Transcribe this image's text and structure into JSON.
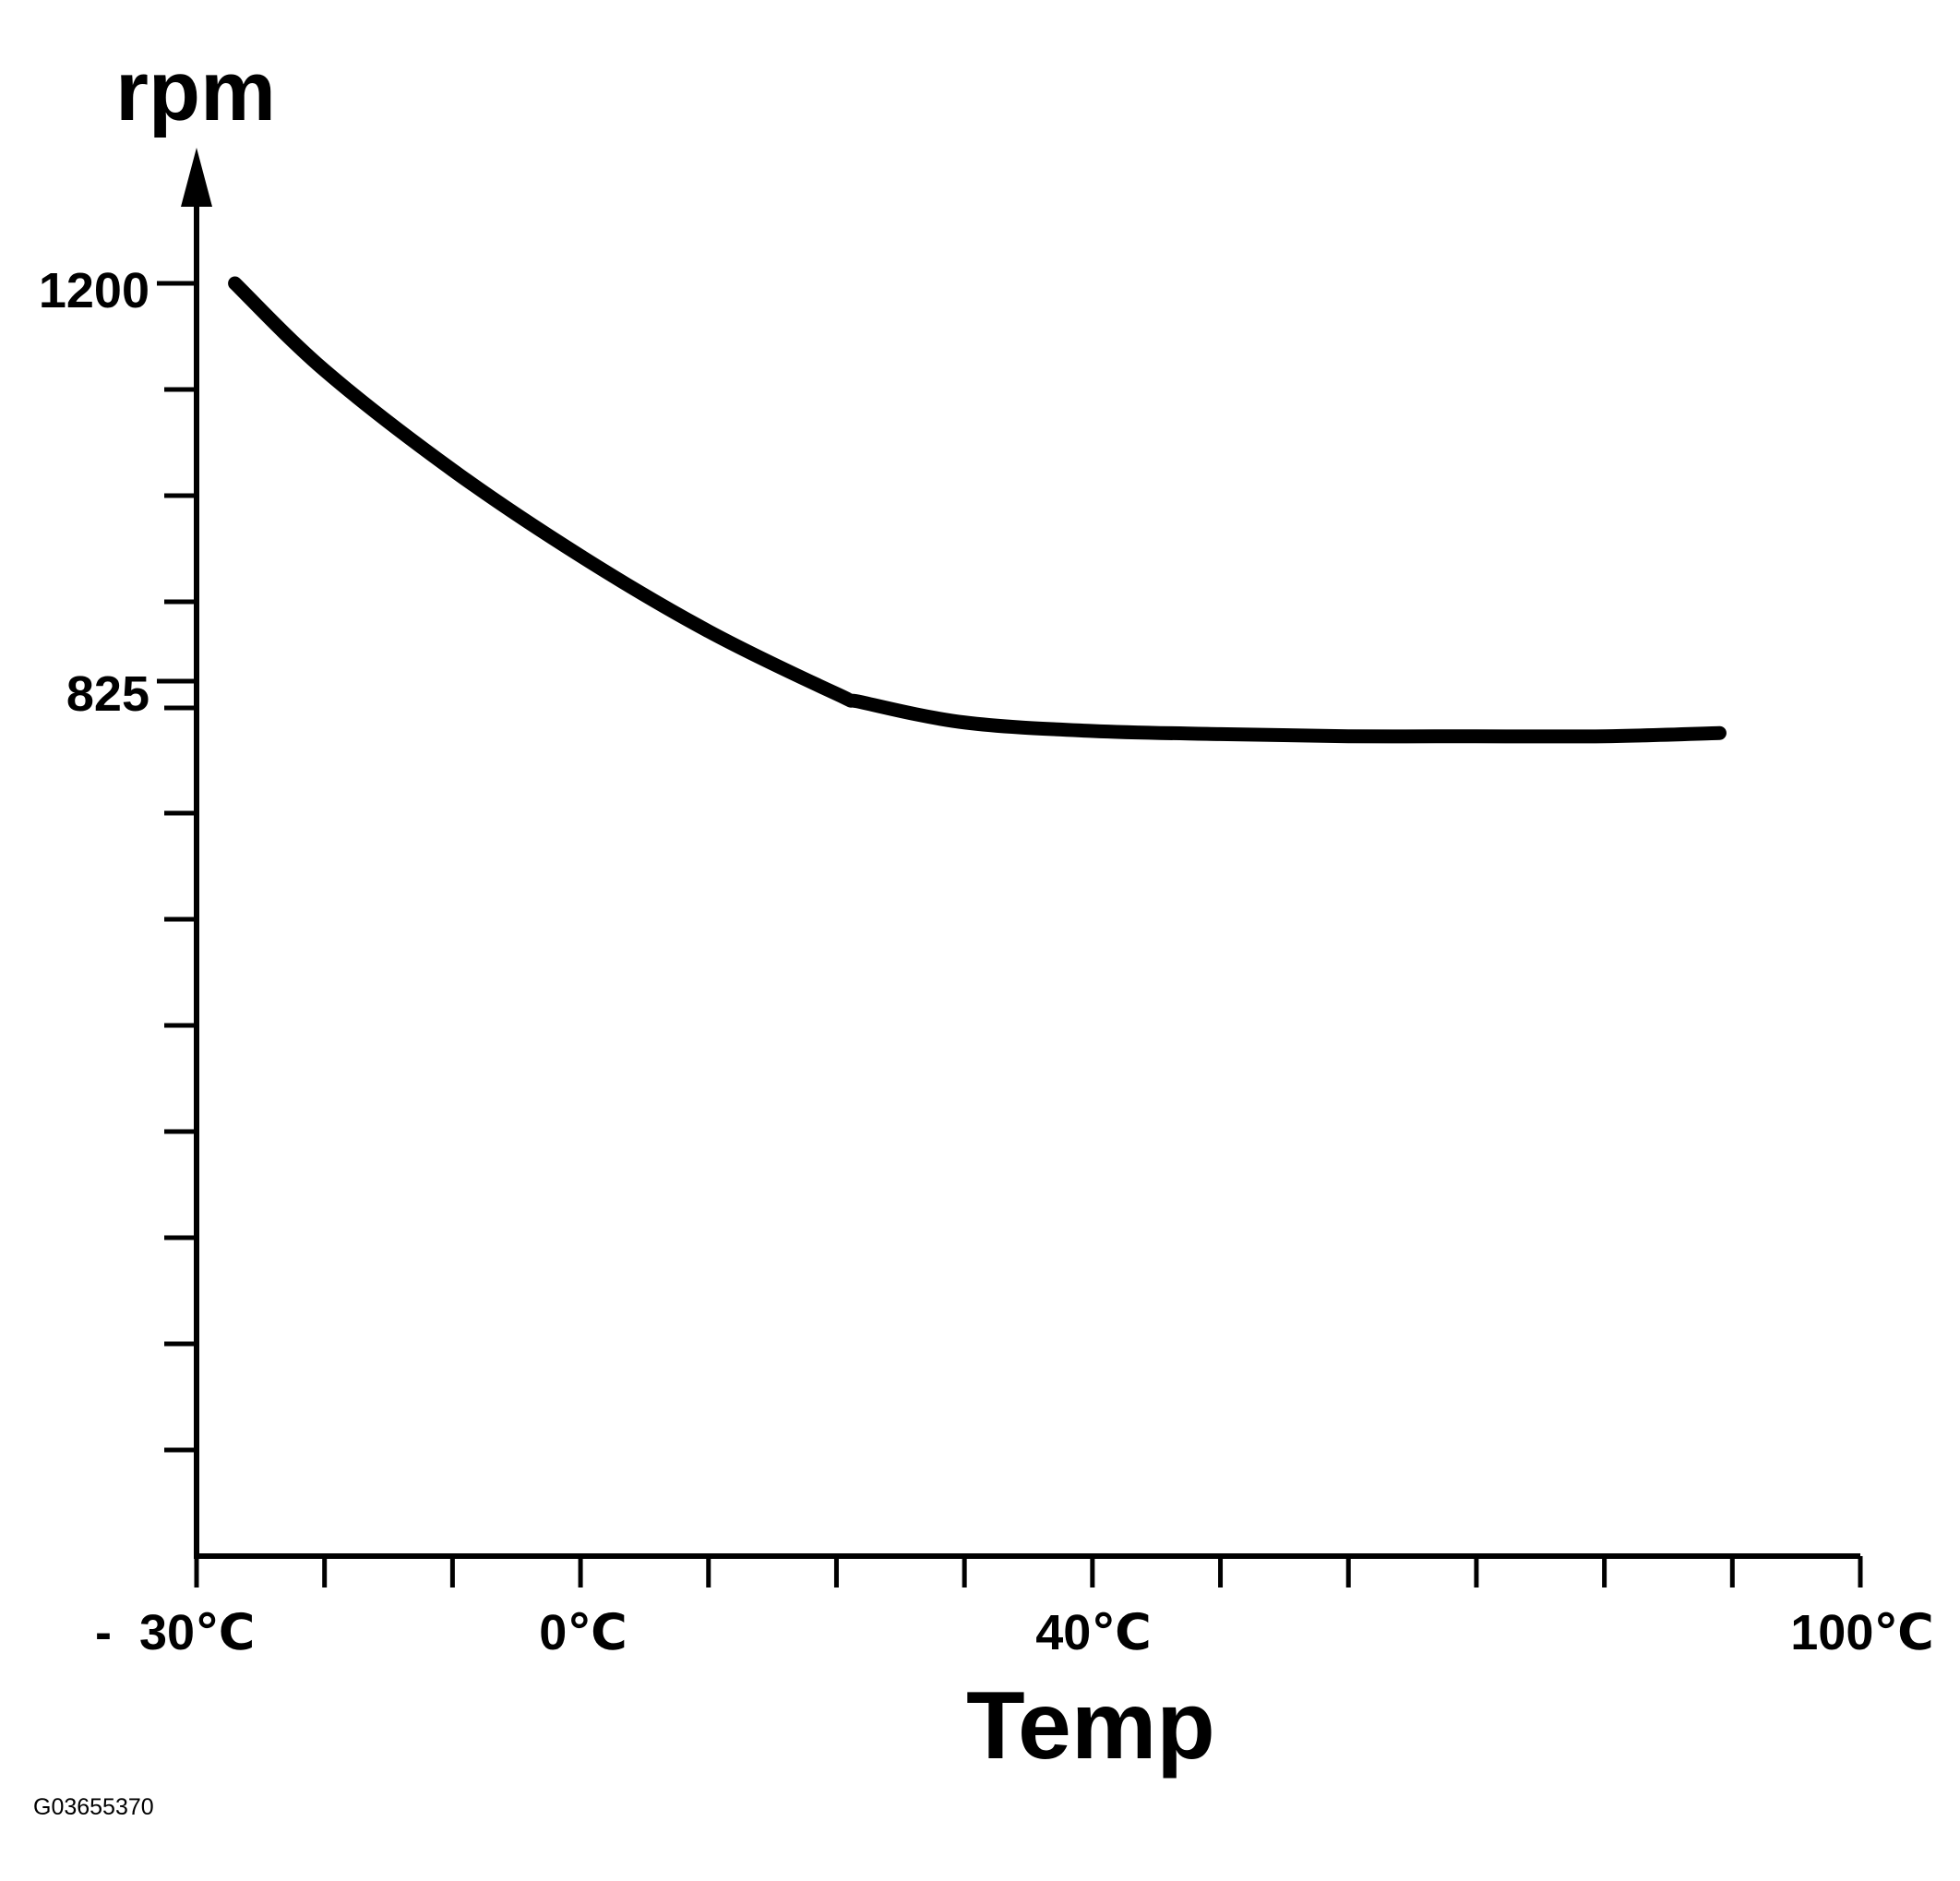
{
  "chart_data": {
    "type": "line",
    "title": "",
    "ylabel": "rpm",
    "xlabel": "Temp",
    "xlim": [
      -30,
      100
    ],
    "ylim": [
      0,
      1200
    ],
    "grid": false,
    "x_ticks": [
      {
        "value": -30,
        "label": "-  30℃"
      },
      {
        "value": 0,
        "label": "0℃"
      },
      {
        "value": 40,
        "label": "40℃"
      },
      {
        "value": 100,
        "label": "100℃"
      }
    ],
    "y_ticks": [
      {
        "value": 1200,
        "label": "1200"
      },
      {
        "value": 825,
        "label": "825"
      }
    ],
    "series": [
      {
        "x": [
          -27,
          -20,
          -10,
          0,
          10,
          20,
          22,
          30,
          40,
          50,
          60,
          70,
          80,
          89
        ],
        "y": [
          1200,
          1118,
          1024,
          943,
          872,
          813,
          805,
          786,
          778,
          775,
          773,
          773,
          773,
          776
        ]
      }
    ],
    "figure_code": "G03655370",
    "line_color": "#000000"
  }
}
